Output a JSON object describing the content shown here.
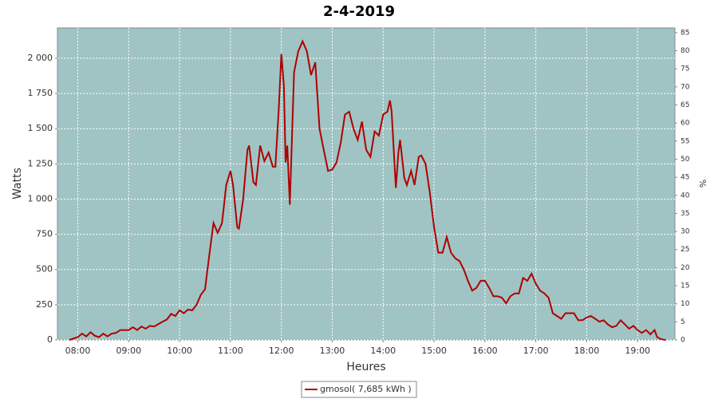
{
  "chart_data": {
    "type": "line",
    "title": "2-4-2019",
    "x_label": "Heures",
    "y_label": "Watts",
    "y2_label": "%",
    "x": [
      "07:50",
      "08:00",
      "08:05",
      "08:10",
      "08:15",
      "08:20",
      "08:25",
      "08:30",
      "08:35",
      "08:40",
      "08:45",
      "08:50",
      "09:00",
      "09:05",
      "09:10",
      "09:15",
      "09:20",
      "09:25",
      "09:30",
      "09:40",
      "09:45",
      "09:50",
      "09:55",
      "10:00",
      "10:05",
      "10:10",
      "10:15",
      "10:20",
      "10:25",
      "10:30",
      "10:35",
      "10:40",
      "10:45",
      "10:50",
      "10:55",
      "11:00",
      "11:03",
      "11:08",
      "11:10",
      "11:15",
      "11:20",
      "11:22",
      "11:27",
      "11:30",
      "11:35",
      "11:40",
      "11:45",
      "11:50",
      "11:53",
      "11:57",
      "12:00",
      "12:03",
      "12:05",
      "12:07",
      "12:10",
      "12:15",
      "12:20",
      "12:25",
      "12:30",
      "12:35",
      "12:40",
      "12:45",
      "12:50",
      "12:55",
      "13:00",
      "13:05",
      "13:10",
      "13:15",
      "13:20",
      "13:25",
      "13:30",
      "13:35",
      "13:40",
      "13:45",
      "13:50",
      "13:55",
      "14:00",
      "14:05",
      "14:08",
      "14:10",
      "14:15",
      "14:18",
      "14:20",
      "14:25",
      "14:28",
      "14:33",
      "14:37",
      "14:42",
      "14:45",
      "14:50",
      "14:55",
      "15:00",
      "15:05",
      "15:10",
      "15:15",
      "15:20",
      "15:25",
      "15:30",
      "15:35",
      "15:40",
      "15:45",
      "15:50",
      "15:55",
      "16:00",
      "16:05",
      "16:10",
      "16:15",
      "16:20",
      "16:25",
      "16:30",
      "16:35",
      "16:40",
      "16:45",
      "16:50",
      "16:55",
      "17:00",
      "17:05",
      "17:10",
      "17:15",
      "17:20",
      "17:25",
      "17:30",
      "17:35",
      "17:40",
      "17:45",
      "17:50",
      "17:55",
      "18:00",
      "18:05",
      "18:10",
      "18:15",
      "18:20",
      "18:25",
      "18:30",
      "18:35",
      "18:40",
      "18:45",
      "18:50",
      "18:55",
      "19:00",
      "19:05",
      "19:10",
      "19:15",
      "19:20",
      "19:23",
      "19:28",
      "19:33"
    ],
    "series": [
      {
        "name": "gmosol( 7,685 kWh )",
        "color": "#b00000",
        "values": [
          0,
          20,
          45,
          25,
          55,
          30,
          20,
          45,
          25,
          45,
          50,
          70,
          70,
          90,
          70,
          95,
          80,
          100,
          95,
          130,
          145,
          185,
          170,
          210,
          190,
          215,
          210,
          250,
          320,
          360,
          600,
          830,
          760,
          830,
          1100,
          1200,
          1100,
          800,
          790,
          1000,
          1350,
          1380,
          1120,
          1100,
          1380,
          1270,
          1330,
          1230,
          1230,
          1650,
          2030,
          1800,
          1260,
          1380,
          960,
          1900,
          2050,
          2120,
          2050,
          1880,
          1970,
          1500,
          1350,
          1200,
          1210,
          1260,
          1400,
          1600,
          1620,
          1500,
          1420,
          1550,
          1350,
          1300,
          1480,
          1450,
          1600,
          1620,
          1700,
          1620,
          1080,
          1330,
          1420,
          1150,
          1100,
          1200,
          1100,
          1300,
          1310,
          1250,
          1050,
          800,
          620,
          620,
          730,
          620,
          580,
          560,
          500,
          420,
          350,
          370,
          420,
          420,
          370,
          310,
          310,
          300,
          260,
          310,
          330,
          330,
          440,
          420,
          470,
          400,
          350,
          330,
          300,
          190,
          170,
          150,
          190,
          190,
          190,
          140,
          140,
          160,
          170,
          150,
          130,
          140,
          110,
          90,
          100,
          140,
          110,
          80,
          100,
          70,
          50,
          70,
          40,
          70,
          20,
          5,
          0
        ]
      }
    ],
    "xlim": [
      "07:36",
      "19:44"
    ],
    "xticks": [
      "08:00",
      "09:00",
      "10:00",
      "11:00",
      "12:00",
      "13:00",
      "14:00",
      "15:00",
      "16:00",
      "17:00",
      "18:00",
      "19:00"
    ],
    "ylim": [
      0,
      2215
    ],
    "yticks": [
      0,
      250,
      500,
      750,
      {
        "value": 1000,
        "label": "1 000"
      },
      {
        "value": 1250,
        "label": "1 250"
      },
      {
        "value": 1500,
        "label": "1 500"
      },
      {
        "value": 1750,
        "label": "1 750"
      },
      {
        "value": 2000,
        "label": "2 000"
      }
    ],
    "y2lim": [
      0,
      86.3
    ],
    "y2ticks": [
      0,
      5,
      10,
      15,
      20,
      25,
      30,
      35,
      40,
      45,
      50,
      55,
      60,
      65,
      70,
      75,
      80,
      85
    ],
    "grid": true,
    "legend": "bottom",
    "background": "#a0c4c4"
  }
}
